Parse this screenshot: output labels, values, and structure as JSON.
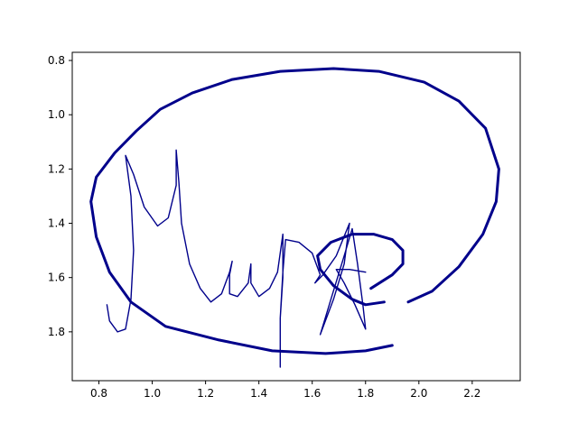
{
  "chart_data": {
    "type": "line",
    "title": "",
    "xlabel": "",
    "ylabel": "",
    "xlim": [
      0.7,
      2.38
    ],
    "ylim": [
      1.98,
      0.77
    ],
    "y_inverted": true,
    "grid": false,
    "x_ticks": [
      {
        "value": 0.8,
        "label": "0.8"
      },
      {
        "value": 1.0,
        "label": "1.0"
      },
      {
        "value": 1.2,
        "label": "1.2"
      },
      {
        "value": 1.4,
        "label": "1.4"
      },
      {
        "value": 1.6,
        "label": "1.6"
      },
      {
        "value": 1.8,
        "label": "1.8"
      },
      {
        "value": 2.0,
        "label": "2.0"
      },
      {
        "value": 2.2,
        "label": "2.2"
      }
    ],
    "y_ticks": [
      {
        "value": 0.8,
        "label": "0.8"
      },
      {
        "value": 1.0,
        "label": "1.0"
      },
      {
        "value": 1.2,
        "label": "1.2"
      },
      {
        "value": 1.4,
        "label": "1.4"
      },
      {
        "value": 1.6,
        "label": "1.6"
      },
      {
        "value": 1.8,
        "label": "1.8"
      }
    ],
    "series_color": "#00008b",
    "series": [
      {
        "stroke": "thick",
        "points": [
          [
            1.9,
            1.85
          ],
          [
            1.8,
            1.87
          ],
          [
            1.65,
            1.88
          ],
          [
            1.45,
            1.87
          ],
          [
            1.25,
            1.83
          ],
          [
            1.05,
            1.78
          ],
          [
            0.92,
            1.69
          ],
          [
            0.84,
            1.58
          ],
          [
            0.79,
            1.45
          ],
          [
            0.77,
            1.32
          ],
          [
            0.79,
            1.23
          ],
          [
            0.86,
            1.14
          ],
          [
            0.94,
            1.06
          ],
          [
            1.03,
            0.98
          ],
          [
            1.15,
            0.92
          ],
          [
            1.3,
            0.87
          ],
          [
            1.48,
            0.84
          ],
          [
            1.68,
            0.83
          ],
          [
            1.85,
            0.84
          ],
          [
            2.02,
            0.88
          ],
          [
            2.15,
            0.95
          ],
          [
            2.25,
            1.05
          ],
          [
            2.3,
            1.2
          ],
          [
            2.29,
            1.32
          ],
          [
            2.24,
            1.44
          ],
          [
            2.15,
            1.56
          ],
          [
            2.05,
            1.65
          ],
          [
            1.96,
            1.69
          ]
        ]
      },
      {
        "stroke": "thick",
        "points": [
          [
            1.82,
            1.64
          ],
          [
            1.9,
            1.59
          ],
          [
            1.94,
            1.55
          ],
          [
            1.94,
            1.5
          ],
          [
            1.9,
            1.46
          ],
          [
            1.83,
            1.44
          ],
          [
            1.75,
            1.44
          ],
          [
            1.67,
            1.47
          ],
          [
            1.62,
            1.52
          ],
          [
            1.63,
            1.57
          ],
          [
            1.68,
            1.63
          ],
          [
            1.75,
            1.68
          ],
          [
            1.8,
            1.7
          ],
          [
            1.87,
            1.69
          ]
        ]
      },
      {
        "stroke": "thin",
        "points": [
          [
            0.83,
            1.7
          ],
          [
            0.84,
            1.76
          ],
          [
            0.87,
            1.8
          ],
          [
            0.9,
            1.79
          ],
          [
            0.92,
            1.68
          ],
          [
            0.93,
            1.5
          ],
          [
            0.92,
            1.3
          ],
          [
            0.9,
            1.15
          ],
          [
            0.93,
            1.22
          ],
          [
            0.97,
            1.34
          ],
          [
            1.02,
            1.41
          ],
          [
            1.06,
            1.38
          ],
          [
            1.09,
            1.26
          ],
          [
            1.09,
            1.13
          ],
          [
            1.1,
            1.25
          ],
          [
            1.11,
            1.4
          ],
          [
            1.14,
            1.55
          ],
          [
            1.18,
            1.64
          ],
          [
            1.22,
            1.69
          ],
          [
            1.26,
            1.66
          ],
          [
            1.29,
            1.58
          ],
          [
            1.3,
            1.54
          ],
          [
            1.29,
            1.59
          ],
          [
            1.29,
            1.66
          ],
          [
            1.32,
            1.67
          ],
          [
            1.36,
            1.62
          ],
          [
            1.37,
            1.55
          ],
          [
            1.37,
            1.62
          ],
          [
            1.4,
            1.67
          ],
          [
            1.44,
            1.64
          ],
          [
            1.47,
            1.58
          ],
          [
            1.49,
            1.44
          ],
          [
            1.49,
            1.6
          ],
          [
            1.48,
            1.75
          ],
          [
            1.48,
            1.93
          ],
          [
            1.48,
            1.75
          ],
          [
            1.49,
            1.58
          ],
          [
            1.5,
            1.46
          ],
          [
            1.55,
            1.47
          ],
          [
            1.6,
            1.51
          ],
          [
            1.63,
            1.59
          ],
          [
            1.61,
            1.62
          ],
          [
            1.64,
            1.59
          ],
          [
            1.69,
            1.52
          ],
          [
            1.74,
            1.4
          ],
          [
            1.72,
            1.55
          ],
          [
            1.68,
            1.68
          ],
          [
            1.63,
            1.81
          ],
          [
            1.67,
            1.68
          ],
          [
            1.72,
            1.52
          ],
          [
            1.75,
            1.42
          ],
          [
            1.77,
            1.55
          ],
          [
            1.79,
            1.7
          ],
          [
            1.8,
            1.79
          ],
          [
            1.76,
            1.7
          ],
          [
            1.72,
            1.62
          ],
          [
            1.69,
            1.57
          ],
          [
            1.74,
            1.57
          ],
          [
            1.8,
            1.58
          ]
        ]
      }
    ]
  }
}
